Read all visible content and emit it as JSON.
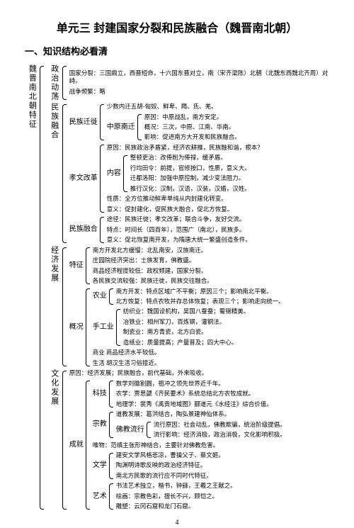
{
  "title": "单元三 封建国家分裂和民族融合（魏晋南北朝）",
  "section": "一、知识结构必看清",
  "pageNum": "4",
  "root": "魏晋南北朝特征",
  "politics": {
    "label": "政治动荡",
    "l1": "国家分裂：三国鼎立，西晋短命，十六国东晋对立，南（宋齐梁陈）北朝（北魏东西魏北齐周）对峙。",
    "l2": "战争频繁：略"
  },
  "ethnic": {
    "label": "民族融合",
    "move": {
      "label": "民族迁徙",
      "l1": "少数内迁五胡-匈奴、鲜卑、羯、氐、羌。",
      "south": "中原南迁",
      "s1": "原因：中原战乱，南方安定。",
      "s2": "概况：三次，中原、江南、华南。",
      "s3": "影响：促进南方大开发和民族融合。"
    },
    "xiaowen": {
      "label": "孝文改革",
      "l1": "原因：民族政治矛盾紧，经济农耕推，民族融和谐，根本？",
      "content": "内容",
      "c1": "整顿吏治：改俸削为俸禄，缓矛盾。",
      "c2": "行均田令：前提，官修按口，性质，意义大。",
      "c3": "迁都洛阳：加强中原控制，减少变法阻力。",
      "c4": "推行汉化：汉制，汉语，汉装，汉婚，汉姓。",
      "l2": "性质：全方位推动鲜卑单纯从内封建化转变。",
      "l3": "意义：促封建化，促民族大融合，促北方恢复。"
    },
    "fuse": {
      "label": "民族融合",
      "l1": "途径：民族迁徙；孝文改革；联合斗争，友好交流。",
      "l2": "特点：时间长（四百年），范围广（南北），民族多。",
      "l3": "意义：促北恢复南开发，为隋唐大统一繁盛创造条件。"
    }
  },
  "econ": {
    "label": "经济发展",
    "feat": {
      "label": "特征",
      "l1": "南方开发北方缓慢：北乱南安，汉族南迁。",
      "l2": "庄园院经济突出：士族发育，佛教盛。",
      "l3": "商品经济程度较低：政权频建，国家分裂。",
      "l4": "各民族交流较强：民族迁徙，民族交往融合。"
    },
    "overview": {
      "label": "概况",
      "agri": "农业",
      "a1": "南方开发：特点区域广不平衡；原因三个；影响南北平衡。",
      "a2": "北方恢复：特点农牧并存总体恢复；表现三个；影响走向统一。",
      "craft": "手工业",
      "c1": "纺织业：魏国设机构，吴国八蚕蚕；蜀锦精美。",
      "c2": "冶铁业：相州军刀，百炼钢，灌钢法。",
      "c3": "制瓷业：南方青瓷，北方白瓷。",
      "c4": "造纸业：质量提高；产量普及；四大中心。",
      "commerce": "商业 商品经济水平较低。",
      "life": "生活 胡汉生活习俗接近。"
    }
  },
  "culture": {
    "label": "文化发展",
    "cause": "原因：经济发展；民族融合，前代基础，外来吸收。",
    "achiev": "成就",
    "sci": "科技",
    "sci1": "数学刘徽割圆，祖冲之领先世界近千年。",
    "sci2": "农学：贾思勰《齐民要术》系统总结北方农牧成就。",
    "sci3": "地理学：裴秀《禹贡地域图》郦道元《水经注》综合价值。",
    "rel": "宗教",
    "rel1": "道教发展：葛洪结合，陶弘景建神仙体系。",
    "rel2_label": "佛教流行",
    "rel2a": "流行原因：社会动乱，佛教欺骗，统治阶级提倡。",
    "rel2b": "流行影响：经济消极，政治消极，文化影响积极。",
    "uniq": "唯物：范缜主张形神结合，主要针对佛教危害。",
    "lit": "文学",
    "lit1": "建安文学风格悲凉，曹操父子、蔡文姬。",
    "lit2": "陶渊明诗歌反映的政治经济特征。",
    "lit3": "南北方民歌的流行应不同时代特征。",
    "art": "艺术",
    "art1": "书法艺术独立，楷书，钟繇，王羲之王献之。",
    "art2": "绘画：宗教色彩，擅长不兴，顾恺之。",
    "art3": "雕塑：云冈石窟和龙门石窟。"
  }
}
